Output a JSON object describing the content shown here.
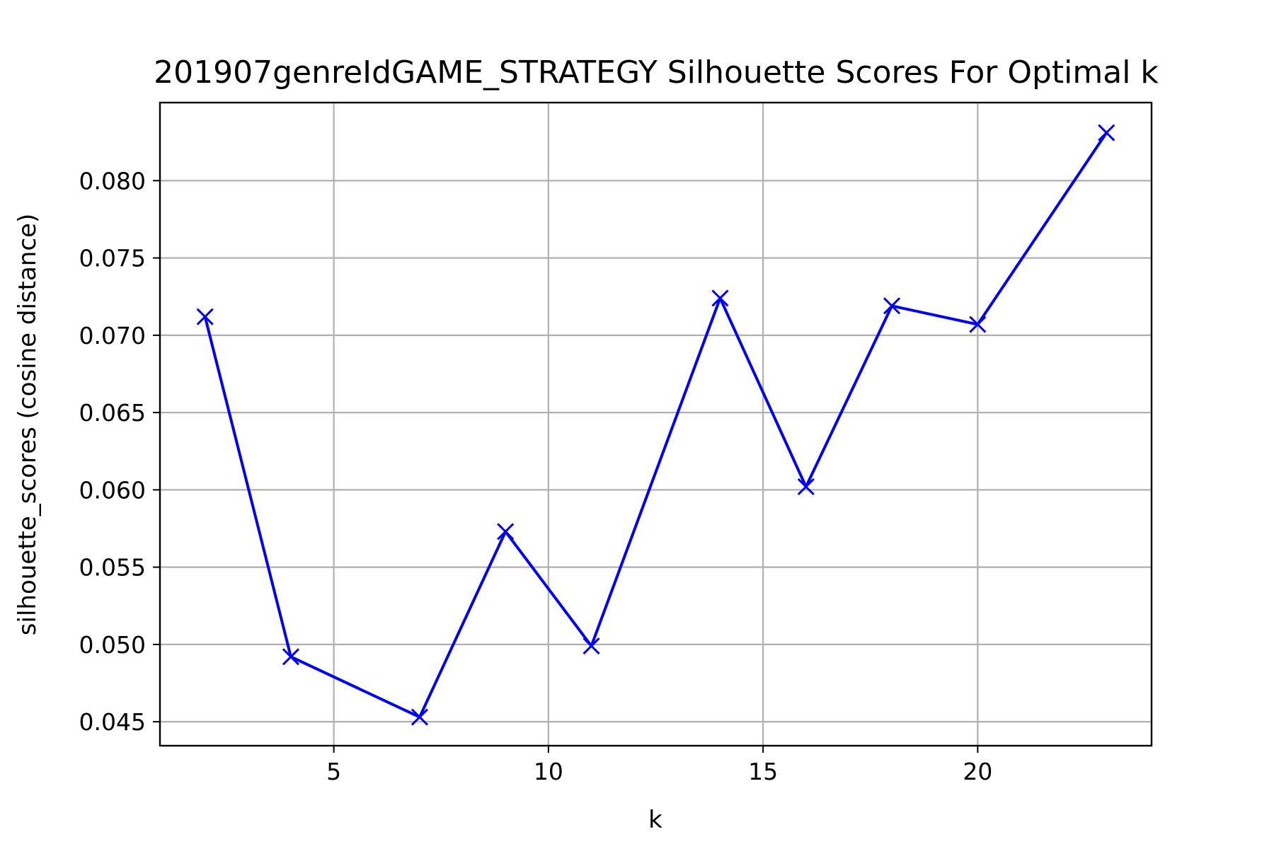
{
  "chart_data": {
    "type": "line",
    "title": "201907genreIdGAME_STRATEGY Silhouette Scores For Optimal k",
    "xlabel": "k",
    "ylabel": "silhouette_scores (cosine distance)",
    "x": [
      2,
      4,
      7,
      9,
      11,
      14,
      16,
      18,
      20,
      23
    ],
    "series": [
      {
        "values": [
          0.0712,
          0.0492,
          0.0453,
          0.0573,
          0.0499,
          0.0724,
          0.0602,
          0.0719,
          0.0707,
          0.0831
        ]
      }
    ],
    "xlim": [
      0.95,
      24.05
    ],
    "ylim": [
      0.04345,
      0.08505
    ],
    "xticks": [
      5,
      10,
      15,
      20
    ],
    "xtick_labels": [
      "5",
      "10",
      "15",
      "20"
    ],
    "yticks": [
      0.045,
      0.05,
      0.055,
      0.06,
      0.065,
      0.07,
      0.075,
      0.08
    ],
    "ytick_labels": [
      "0.045",
      "0.050",
      "0.055",
      "0.060",
      "0.065",
      "0.070",
      "0.075",
      "0.080"
    ],
    "grid": true,
    "marker": "x",
    "line_color": "#0000ff",
    "grid_color": "#b0b0b0"
  }
}
